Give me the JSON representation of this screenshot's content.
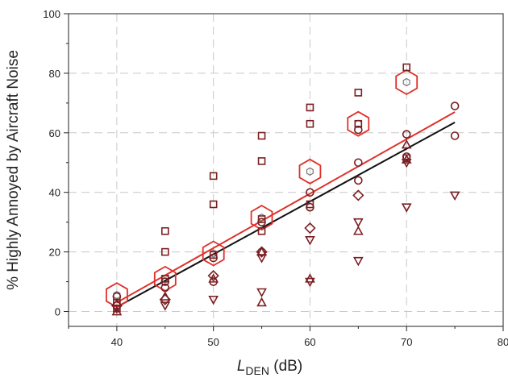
{
  "chart_data": {
    "type": "scatter",
    "title": "",
    "ylabel": "% Highly Annoyed by Aircraft Noise",
    "xlabel": {
      "main": "L",
      "sub": "DEN",
      "unit": " (dB)"
    },
    "xlim": [
      35,
      80
    ],
    "ylim": [
      -5,
      100
    ],
    "xticks": [
      40,
      50,
      60,
      70,
      80
    ],
    "xtick_labels": [
      "40",
      "50",
      "60",
      "70",
      "80"
    ],
    "yticks": [
      0,
      20,
      40,
      60,
      80,
      100
    ],
    "ytick_labels": [
      "0",
      "20",
      "40",
      "60",
      "80",
      "100"
    ],
    "grid": true,
    "legend": "none",
    "colors": {
      "marker": "#7a1f22",
      "hexagon": "#e0302a",
      "red_line": "#e0302a",
      "black_line": "#111111",
      "grid": "#c8c8c8"
    },
    "series": [
      {
        "marker": "square",
        "points": [
          [
            40,
            1
          ],
          [
            40,
            3
          ],
          [
            45,
            27
          ],
          [
            45,
            20
          ],
          [
            45,
            11
          ],
          [
            50,
            45.5
          ],
          [
            50,
            36
          ],
          [
            50,
            19
          ],
          [
            55,
            59
          ],
          [
            55,
            50.5
          ],
          [
            55,
            31
          ],
          [
            55,
            27
          ],
          [
            60,
            68.5
          ],
          [
            60,
            63
          ],
          [
            60,
            36
          ],
          [
            65,
            73.5
          ],
          [
            65,
            63
          ],
          [
            70,
            82
          ],
          [
            70,
            51.5
          ]
        ]
      },
      {
        "marker": "circle",
        "points": [
          [
            40,
            2
          ],
          [
            40,
            5
          ],
          [
            45,
            10
          ],
          [
            45,
            8
          ],
          [
            50,
            18
          ],
          [
            50,
            10
          ],
          [
            55,
            30
          ],
          [
            55,
            20
          ],
          [
            60,
            40
          ],
          [
            60,
            35
          ],
          [
            65,
            50
          ],
          [
            65,
            44
          ],
          [
            65,
            61
          ],
          [
            70,
            59.5
          ],
          [
            70,
            52
          ],
          [
            75,
            69
          ],
          [
            75,
            59
          ]
        ]
      },
      {
        "marker": "diamond",
        "points": [
          [
            40,
            2
          ],
          [
            45,
            4
          ],
          [
            50,
            12
          ],
          [
            55,
            20
          ],
          [
            60,
            28
          ],
          [
            65,
            39
          ]
        ]
      },
      {
        "marker": "triangle-up",
        "points": [
          [
            40,
            0
          ],
          [
            45,
            5
          ],
          [
            50,
            11
          ],
          [
            55,
            3
          ],
          [
            55,
            20
          ],
          [
            60,
            11
          ],
          [
            65,
            27
          ],
          [
            70,
            56
          ],
          [
            70,
            51
          ]
        ]
      },
      {
        "marker": "triangle-down",
        "points": [
          [
            40,
            1
          ],
          [
            45,
            2
          ],
          [
            50,
            4
          ],
          [
            55,
            6.5
          ],
          [
            55,
            18
          ],
          [
            60,
            24
          ],
          [
            60,
            10
          ],
          [
            65,
            30
          ],
          [
            65,
            17
          ],
          [
            70,
            35
          ],
          [
            70,
            50
          ],
          [
            75,
            39
          ]
        ]
      },
      {
        "marker": "hexagon",
        "points": [
          [
            40,
            5.5
          ],
          [
            45,
            11
          ],
          [
            50,
            19.5
          ],
          [
            55,
            31.5
          ],
          [
            60,
            47
          ],
          [
            65,
            63
          ],
          [
            70,
            77
          ]
        ]
      }
    ],
    "fit_lines": [
      {
        "color": "red_line",
        "points": [
          [
            40,
            3
          ],
          [
            75,
            67
          ]
        ]
      },
      {
        "color": "black_line",
        "points": [
          [
            40,
            1.5
          ],
          [
            75,
            63.5
          ]
        ]
      }
    ]
  }
}
